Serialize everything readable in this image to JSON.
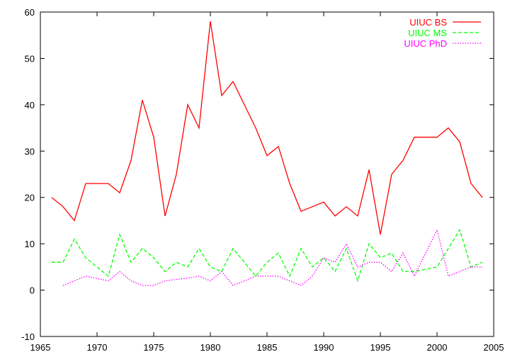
{
  "chart_data": {
    "type": "line",
    "title": "",
    "xlabel": "",
    "ylabel": "",
    "xlim": [
      1965,
      2005
    ],
    "ylim": [
      -10,
      60
    ],
    "xticks": [
      1965,
      1970,
      1975,
      1980,
      1985,
      1990,
      1995,
      2000,
      2005
    ],
    "yticks": [
      -10,
      0,
      10,
      20,
      30,
      40,
      50,
      60
    ],
    "grid": false,
    "legend_position": "top-right",
    "series": [
      {
        "name": "UIUC BS",
        "color": "#ff0000",
        "style": "solid",
        "x": [
          1966,
          1967,
          1968,
          1969,
          1970,
          1971,
          1972,
          1973,
          1974,
          1975,
          1976,
          1977,
          1978,
          1979,
          1980,
          1981,
          1982,
          1983,
          1984,
          1985,
          1986,
          1987,
          1988,
          1989,
          1990,
          1991,
          1992,
          1993,
          1994,
          1995,
          1996,
          1997,
          1998,
          1999,
          2000,
          2001,
          2002,
          2003,
          2004
        ],
        "y": [
          20,
          18,
          15,
          23,
          23,
          23,
          21,
          28,
          41,
          33,
          16,
          25,
          40,
          35,
          58,
          42,
          45,
          40,
          35,
          29,
          31,
          23,
          17,
          18,
          19,
          16,
          18,
          16,
          26,
          12,
          25,
          28,
          33,
          33,
          33,
          35,
          32,
          23,
          20
        ]
      },
      {
        "name": "UIUC MS",
        "color": "#00ff00",
        "style": "dashed",
        "x": [
          1966,
          1967,
          1968,
          1969,
          1970,
          1971,
          1972,
          1973,
          1974,
          1975,
          1976,
          1977,
          1978,
          1979,
          1980,
          1981,
          1982,
          1983,
          1984,
          1985,
          1986,
          1987,
          1988,
          1989,
          1990,
          1991,
          1992,
          1993,
          1994,
          1995,
          1996,
          1997,
          1998,
          1999,
          2000,
          2001,
          2002,
          2003,
          2004
        ],
        "y": [
          6,
          6,
          11,
          7,
          5,
          3,
          12,
          6,
          9,
          7,
          4,
          6,
          5,
          9,
          5,
          4,
          9,
          6,
          3,
          6,
          8,
          3,
          9,
          5,
          7,
          4,
          9,
          2,
          10,
          7,
          8,
          4,
          4,
          4.5,
          5,
          9,
          13,
          5,
          6
        ]
      },
      {
        "name": "UIUC PhD",
        "color": "#ff00ff",
        "style": "dotted",
        "x": [
          1967,
          1968,
          1969,
          1970,
          1971,
          1972,
          1973,
          1974,
          1975,
          1976,
          1977,
          1978,
          1979,
          1980,
          1981,
          1982,
          1983,
          1984,
          1985,
          1986,
          1987,
          1988,
          1989,
          1990,
          1991,
          1992,
          1993,
          1994,
          1995,
          1996,
          1997,
          1998,
          1999,
          2000,
          2001,
          2002,
          2003,
          2004
        ],
        "y": [
          1,
          2,
          3,
          2.5,
          2,
          4,
          2,
          1,
          1,
          2,
          2.3,
          2.6,
          3,
          2,
          4,
          1,
          2,
          3,
          3,
          3,
          2,
          1,
          3,
          7,
          6,
          10,
          5,
          6,
          6,
          4,
          8,
          3,
          8,
          13,
          3,
          4,
          5,
          5
        ]
      }
    ]
  }
}
